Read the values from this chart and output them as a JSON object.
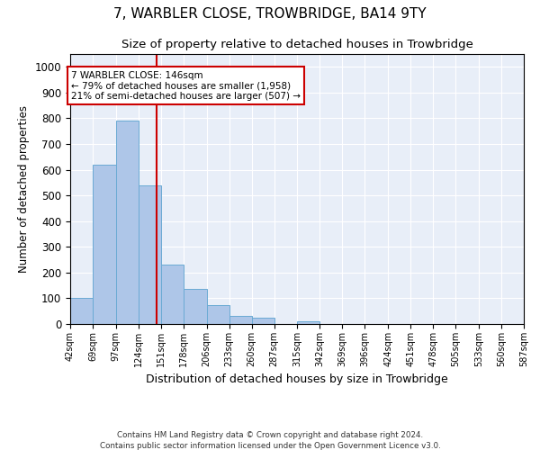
{
  "title": "7, WARBLER CLOSE, TROWBRIDGE, BA14 9TY",
  "subtitle": "Size of property relative to detached houses in Trowbridge",
  "xlabel": "Distribution of detached houses by size in Trowbridge",
  "ylabel": "Number of detached properties",
  "bar_color": "#aec6e8",
  "bar_edge_color": "#6aaad4",
  "background_color": "#e8eef8",
  "grid_color": "#ffffff",
  "annotation_box_color": "#cc0000",
  "vline_color": "#cc0000",
  "footer1": "Contains HM Land Registry data © Crown copyright and database right 2024.",
  "footer2": "Contains public sector information licensed under the Open Government Licence v3.0.",
  "annotation_line1": "7 WARBLER CLOSE: 146sqm",
  "annotation_line2": "← 79% of detached houses are smaller (1,958)",
  "annotation_line3": "21% of semi-detached houses are larger (507) →",
  "property_size": 146,
  "bin_edges": [
    42,
    69,
    97,
    124,
    151,
    178,
    206,
    233,
    260,
    287,
    315,
    342,
    369,
    396,
    424,
    451,
    478,
    505,
    533,
    560,
    587
  ],
  "bar_heights": [
    100,
    620,
    790,
    540,
    230,
    135,
    75,
    30,
    25,
    0,
    10,
    0,
    0,
    0,
    0,
    0,
    0,
    0,
    0,
    0
  ],
  "ylim": [
    0,
    1050
  ],
  "yticks": [
    0,
    100,
    200,
    300,
    400,
    500,
    600,
    700,
    800,
    900,
    1000
  ]
}
